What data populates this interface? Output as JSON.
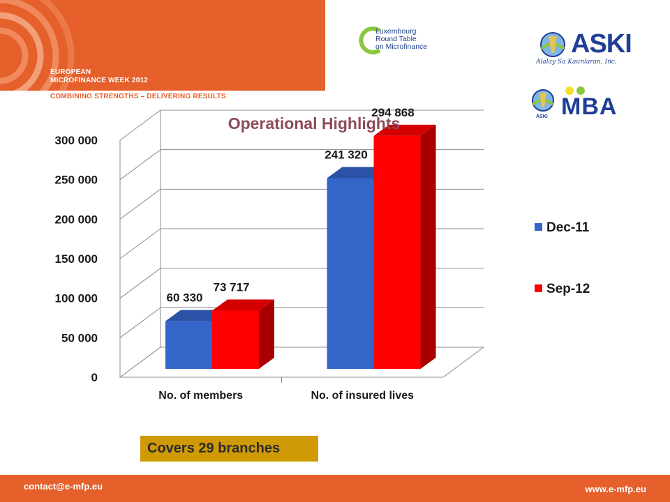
{
  "header": {
    "event_title": "EUROPEAN\nMICROFINANCE WEEK 2012",
    "tagline": "COMBINING STRENGTHS – DELIVERING RESULTS",
    "partner_logo_text": "Luxembourg\nRound Table\non Microfinance",
    "aski_logo_text": "ASKI",
    "aski_motto": "Alalay Sa Kaunlaran, Inc.",
    "mba_logo_text": "MBA",
    "mba_logo_small": "ASKI"
  },
  "colors": {
    "brand_orange": "#e5602b",
    "series_blue": "#3465c8",
    "series_red": "#ff0000",
    "callout_gold": "#d09a06",
    "title_color": "#8c4b5a"
  },
  "chart_data": {
    "type": "bar",
    "title": "Operational Highlights",
    "categories": [
      "No. of members",
      "No. of insured lives"
    ],
    "series": [
      {
        "name": "Dec-11",
        "values": [
          60330,
          241320
        ],
        "labels": [
          "60 330",
          "241 320"
        ]
      },
      {
        "name": "Sep-12",
        "values": [
          73717,
          294868
        ],
        "labels": [
          "73 717",
          "294 868"
        ]
      }
    ],
    "ylim": [
      0,
      300000
    ],
    "yticks": [
      "0",
      "50 000",
      "100 000",
      "150 000",
      "200 000",
      "250 000",
      "300 000"
    ],
    "grid": true,
    "legend": "right",
    "style": "3d-column"
  },
  "callout": "Covers 29 branches",
  "footer": {
    "email": "contact@e-mfp.eu",
    "website": "www.e-mfp.eu"
  }
}
